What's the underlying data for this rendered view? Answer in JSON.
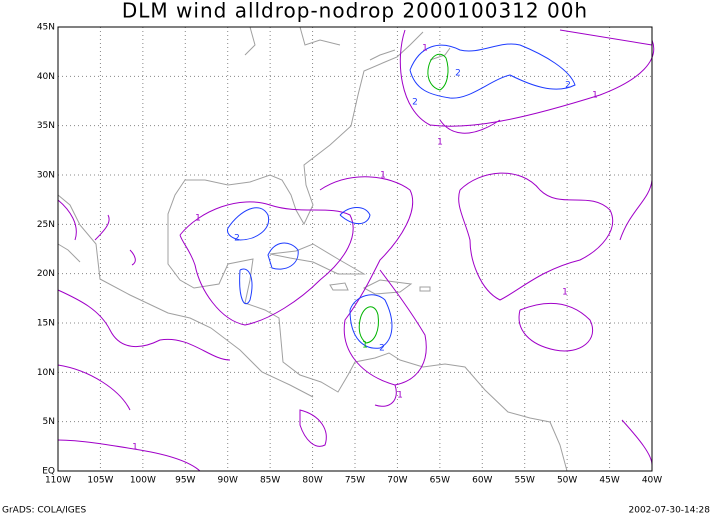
{
  "title": "DLM wind alldrop-nodrop 2000100312 00h",
  "xticks": [
    {
      "value": -110,
      "label": "110W"
    },
    {
      "value": -105,
      "label": "105W"
    },
    {
      "value": -100,
      "label": "100W"
    },
    {
      "value": -95,
      "label": "95W"
    },
    {
      "value": -90,
      "label": "90W"
    },
    {
      "value": -85,
      "label": "85W"
    },
    {
      "value": -80,
      "label": "80W"
    },
    {
      "value": -75,
      "label": "75W"
    },
    {
      "value": -70,
      "label": "70W"
    },
    {
      "value": -65,
      "label": "65W"
    },
    {
      "value": -60,
      "label": "60W"
    },
    {
      "value": -55,
      "label": "55W"
    },
    {
      "value": -50,
      "label": "50W"
    },
    {
      "value": -45,
      "label": "45W"
    },
    {
      "value": -40,
      "label": "40W"
    }
  ],
  "yticks": [
    {
      "value": 0,
      "label": "EQ"
    },
    {
      "value": 5,
      "label": "5N"
    },
    {
      "value": 10,
      "label": "10N"
    },
    {
      "value": 15,
      "label": "15N"
    },
    {
      "value": 20,
      "label": "20N"
    },
    {
      "value": 25,
      "label": "25N"
    },
    {
      "value": 30,
      "label": "30N"
    },
    {
      "value": 35,
      "label": "35N"
    },
    {
      "value": 40,
      "label": "40N"
    },
    {
      "value": 45,
      "label": "45N"
    }
  ],
  "xlim": [
    -110,
    -40
  ],
  "ylim": [
    0,
    45
  ],
  "contour_labels": [
    "1",
    "2",
    "2",
    "1",
    "1",
    "2",
    "2",
    "1",
    "1",
    "1",
    "2",
    "1",
    "1",
    "1"
  ],
  "footer": {
    "left": "GrADS: COLA/IGES",
    "right": "2002-07-30-14:28"
  }
}
